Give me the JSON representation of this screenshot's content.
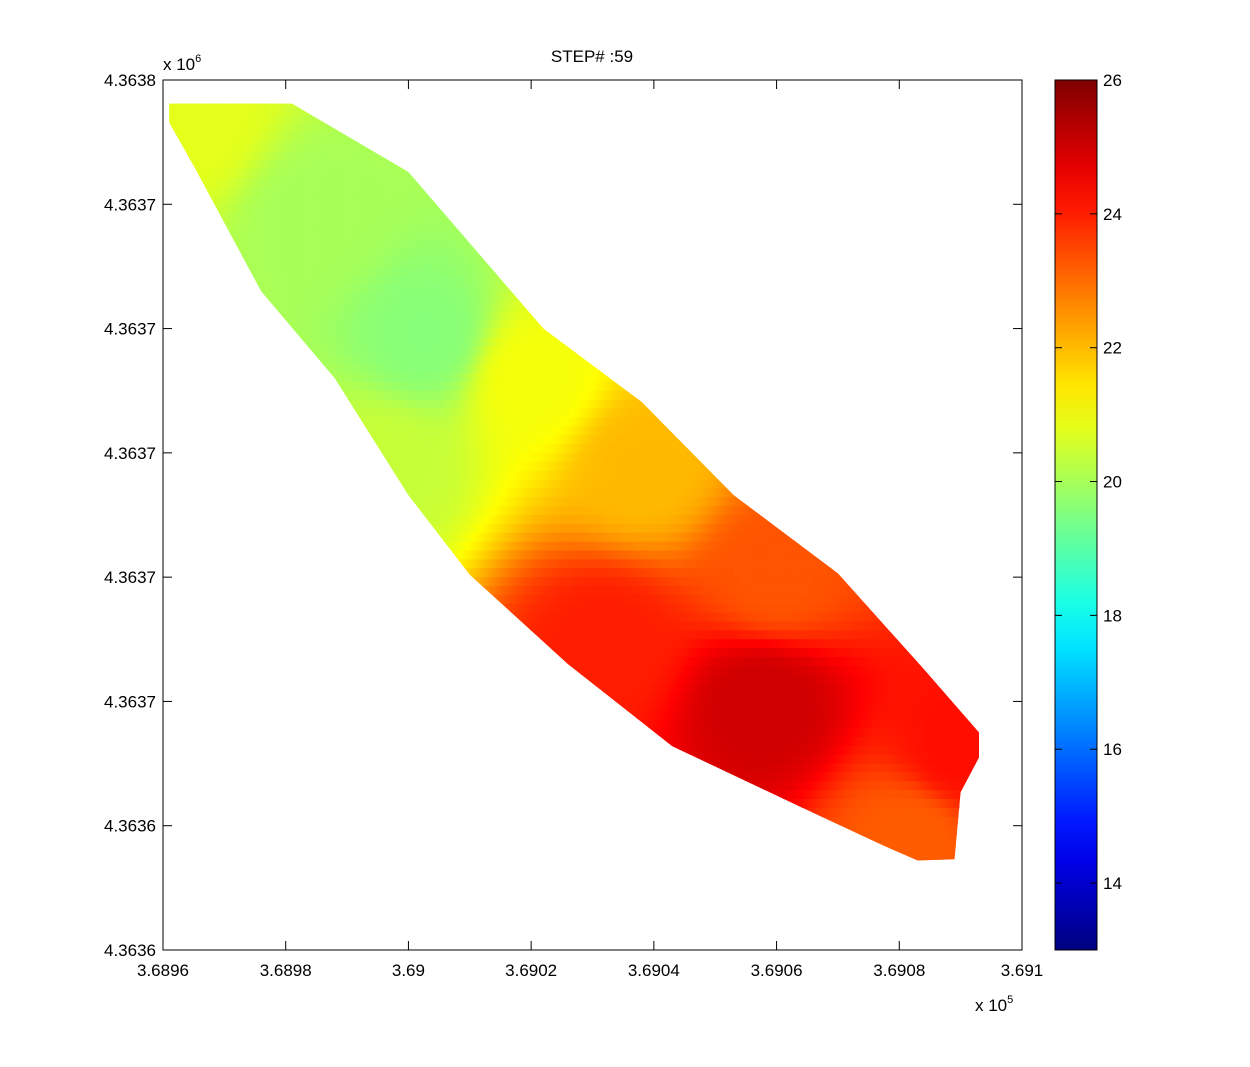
{
  "chart_data": {
    "type": "heatmap",
    "title": "STEP# :59",
    "xlabel": "",
    "ylabel": "",
    "x_exponent_label": "x 10",
    "x_exponent_power": "5",
    "y_exponent_label": "x 10",
    "y_exponent_power": "6",
    "xlim": [
      3.6896,
      3.691
    ],
    "x_ticks": [
      {
        "value": 3.6896,
        "label": "3.6896"
      },
      {
        "value": 3.6898,
        "label": "3.6898"
      },
      {
        "value": 3.69,
        "label": "3.69"
      },
      {
        "value": 3.6902,
        "label": "3.6902"
      },
      {
        "value": 3.6904,
        "label": "3.6904"
      },
      {
        "value": 3.6906,
        "label": "3.6906"
      },
      {
        "value": 3.6908,
        "label": "3.6908"
      },
      {
        "value": 3.691,
        "label": "3.691"
      }
    ],
    "ylim": [
      0,
      7
    ],
    "y_ticks": [
      {
        "value": 7,
        "label": "4.3638"
      },
      {
        "value": 6,
        "label": "4.3637"
      },
      {
        "value": 5,
        "label": "4.3637"
      },
      {
        "value": 4,
        "label": "4.3637"
      },
      {
        "value": 3,
        "label": "4.3637"
      },
      {
        "value": 2,
        "label": "4.3637"
      },
      {
        "value": 1,
        "label": "4.3636"
      },
      {
        "value": 0,
        "label": "4.3636"
      }
    ],
    "colorbar": {
      "colormap": "jet",
      "min": 13,
      "max": 26,
      "ticks": [
        {
          "value": 26,
          "label": "26"
        },
        {
          "value": 24,
          "label": "24"
        },
        {
          "value": 22,
          "label": "22"
        },
        {
          "value": 20,
          "label": "20"
        },
        {
          "value": 18,
          "label": "18"
        },
        {
          "value": 16,
          "label": "16"
        },
        {
          "value": 14,
          "label": "14"
        }
      ]
    },
    "field": {
      "cell_dx": 2.05e-06,
      "cell_dy": 0.0714,
      "region_boundary": {
        "upper_edge": [
          [
            3.68961,
            6.81
          ],
          [
            3.68981,
            6.81
          ],
          [
            3.69,
            6.26
          ],
          [
            3.69022,
            5.0
          ],
          [
            3.69038,
            4.41
          ],
          [
            3.69053,
            3.66
          ],
          [
            3.6907,
            3.03
          ],
          [
            3.69084,
            2.26
          ],
          [
            3.6909,
            1.92
          ],
          [
            3.69093,
            1.75
          ]
        ],
        "lower_edge": [
          [
            3.69093,
            1.55
          ],
          [
            3.6909,
            1.27
          ],
          [
            3.69089,
            0.73
          ],
          [
            3.69083,
            0.72
          ],
          [
            3.69077,
            0.85
          ],
          [
            3.69064,
            1.15
          ],
          [
            3.69043,
            1.64
          ],
          [
            3.69026,
            2.3
          ],
          [
            3.6901,
            3.02
          ],
          [
            3.69,
            3.66
          ],
          [
            3.68988,
            4.6
          ],
          [
            3.68976,
            5.3
          ],
          [
            3.68965,
            6.31
          ],
          [
            3.68961,
            6.66
          ]
        ]
      },
      "value_anchors": [
        {
          "x": 3.69003,
          "y": 4.95,
          "value": 19.6
        },
        {
          "x": 3.68965,
          "y": 6.7,
          "value": 20.8
        },
        {
          "x": 3.68985,
          "y": 5.9,
          "value": 20.0
        },
        {
          "x": 3.6902,
          "y": 4.6,
          "value": 21.0
        },
        {
          "x": 3.68996,
          "y": 3.9,
          "value": 20.4
        },
        {
          "x": 3.69038,
          "y": 3.9,
          "value": 22.0
        },
        {
          "x": 3.6906,
          "y": 3.0,
          "value": 23.3
        },
        {
          "x": 3.69032,
          "y": 2.5,
          "value": 24.0
        },
        {
          "x": 3.69058,
          "y": 2.0,
          "value": 25.0
        },
        {
          "x": 3.6909,
          "y": 1.6,
          "value": 24.2
        },
        {
          "x": 3.69082,
          "y": 0.9,
          "value": 23.2
        }
      ]
    }
  }
}
